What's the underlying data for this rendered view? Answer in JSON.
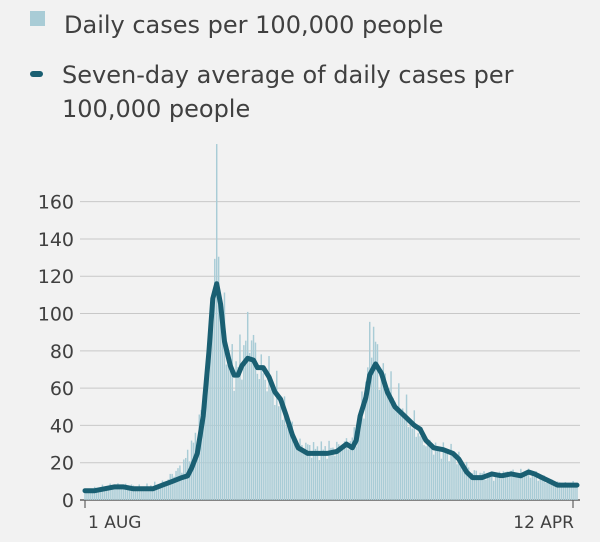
{
  "legend": {
    "bar_label": "Daily cases per 100,000 people",
    "line_label": "Seven-day average of daily cases per 100,000 people"
  },
  "colors": {
    "bar": "#a9ccd6",
    "line": "#1a5f72",
    "grid": "#c8c8c8",
    "background": "#f2f2f2"
  },
  "chart_data": {
    "type": "bar",
    "title": "",
    "xlabel": "",
    "ylabel": "",
    "ylim": [
      0,
      170
    ],
    "yticks": [
      0,
      20,
      40,
      60,
      80,
      100,
      120,
      140,
      160
    ],
    "x_tick_labels": [
      "1 AUG",
      "12 APR"
    ],
    "x_range": [
      0,
      254
    ],
    "grid": true,
    "legend_position": "top-left",
    "series": [
      {
        "name": "Daily cases per 100,000 people",
        "type": "bar",
        "keypoints": [
          [
            0,
            5
          ],
          [
            10,
            7
          ],
          [
            20,
            8
          ],
          [
            30,
            7
          ],
          [
            40,
            9
          ],
          [
            50,
            18
          ],
          [
            58,
            35
          ],
          [
            64,
            72
          ],
          [
            67,
            125
          ],
          [
            68,
            170
          ],
          [
            70,
            115
          ],
          [
            73,
            85
          ],
          [
            76,
            70
          ],
          [
            80,
            75
          ],
          [
            85,
            92
          ],
          [
            90,
            70
          ],
          [
            95,
            65
          ],
          [
            100,
            55
          ],
          [
            105,
            40
          ],
          [
            110,
            30
          ],
          [
            120,
            27
          ],
          [
            130,
            28
          ],
          [
            135,
            30
          ],
          [
            140,
            35
          ],
          [
            145,
            60
          ],
          [
            148,
            95
          ],
          [
            152,
            70
          ],
          [
            156,
            65
          ],
          [
            160,
            55
          ],
          [
            165,
            48
          ],
          [
            170,
            40
          ],
          [
            175,
            32
          ],
          [
            180,
            28
          ],
          [
            190,
            25
          ],
          [
            200,
            15
          ],
          [
            210,
            13
          ],
          [
            220,
            15
          ],
          [
            230,
            14
          ],
          [
            240,
            10
          ],
          [
            250,
            8
          ],
          [
            254,
            9
          ]
        ]
      },
      {
        "name": "Seven-day average of daily cases per 100,000 people",
        "type": "line",
        "points": [
          [
            0,
            5
          ],
          [
            5,
            5
          ],
          [
            10,
            6
          ],
          [
            15,
            7
          ],
          [
            20,
            7
          ],
          [
            25,
            6
          ],
          [
            30,
            6
          ],
          [
            35,
            6
          ],
          [
            40,
            8
          ],
          [
            45,
            10
          ],
          [
            50,
            12
          ],
          [
            53,
            13
          ],
          [
            55,
            17
          ],
          [
            58,
            25
          ],
          [
            61,
            45
          ],
          [
            64,
            80
          ],
          [
            66,
            108
          ],
          [
            68,
            116
          ],
          [
            70,
            105
          ],
          [
            72,
            85
          ],
          [
            75,
            72
          ],
          [
            77,
            67
          ],
          [
            79,
            67
          ],
          [
            81,
            72
          ],
          [
            84,
            76
          ],
          [
            87,
            75
          ],
          [
            89,
            71
          ],
          [
            92,
            71
          ],
          [
            95,
            66
          ],
          [
            98,
            58
          ],
          [
            101,
            54
          ],
          [
            104,
            45
          ],
          [
            107,
            35
          ],
          [
            110,
            28
          ],
          [
            115,
            25
          ],
          [
            120,
            25
          ],
          [
            125,
            25
          ],
          [
            130,
            26
          ],
          [
            135,
            30
          ],
          [
            138,
            28
          ],
          [
            140,
            32
          ],
          [
            142,
            45
          ],
          [
            145,
            55
          ],
          [
            147,
            67
          ],
          [
            150,
            73
          ],
          [
            153,
            68
          ],
          [
            156,
            58
          ],
          [
            160,
            50
          ],
          [
            165,
            45
          ],
          [
            170,
            40
          ],
          [
            173,
            38
          ],
          [
            176,
            32
          ],
          [
            180,
            28
          ],
          [
            185,
            27
          ],
          [
            190,
            25
          ],
          [
            193,
            22
          ],
          [
            197,
            15
          ],
          [
            200,
            12
          ],
          [
            205,
            12
          ],
          [
            210,
            14
          ],
          [
            215,
            13
          ],
          [
            220,
            14
          ],
          [
            225,
            13
          ],
          [
            229,
            15
          ],
          [
            232,
            14
          ],
          [
            236,
            12
          ],
          [
            240,
            10
          ],
          [
            244,
            8
          ],
          [
            250,
            8
          ],
          [
            254,
            8
          ]
        ]
      }
    ]
  }
}
